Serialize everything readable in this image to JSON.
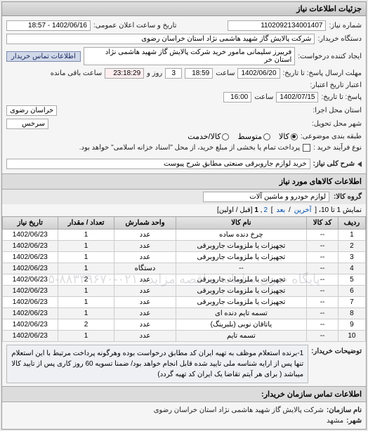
{
  "panel1": {
    "title": "جزئیات اطلاعات نیاز",
    "request_no_label": "شماره نیاز:",
    "request_no": "1102092134001407",
    "announce_label": "تاریخ و ساعت اعلان عمومی:",
    "announce_value": "1402/06/16 - 18:57",
    "buyer_label": "دستگاه خریدار:",
    "buyer_value": "شرکت پالایش گاز شهید هاشمی نژاد   استان خراسان رضوی",
    "creator_label": "ایجاد کننده درخواست:",
    "creator_value": "فریبرز  سلیمانی مامور خرید شرکت پالایش گاز شهید هاشمی نژاد   استان خر",
    "contact_btn": "اطلاعات تماس خریدار",
    "deadline_label": "مهلت ارسال پاسخ: تا تاریخ:",
    "deadline_date": "1402/06/20",
    "time_label": "ساعت",
    "deadline_time": "18:59",
    "remain_days": "3",
    "days_and": "روز و",
    "remain_time": "23:18:29",
    "remain_suffix": "ساعت باقی مانده",
    "validity_label": "اعتبار تاریخ اعتبار:",
    "validity_to_label": "پاسخ: تا تاریخ:",
    "validity_date": "1402/07/15",
    "validity_time": "16:00",
    "exec_province_label": "استان محل اجرا:",
    "exec_province": "خراسان رضوی",
    "delivery_city_label": "شهر محل تحویل:",
    "delivery_city": "سرخس",
    "budget_label": "طبقه بندی موضوعی:",
    "budget_opts": {
      "a": "کالا",
      "b": "متوسط",
      "c": "کالا/خدمت"
    },
    "buy_type_label": "نوع فرآیند خرید :",
    "buy_type_note": "پرداخت تمام یا بخشی از مبلغ خرید، از محل \"اسناد خزانه اسلامی\" خواهد بود.",
    "subject_label": "شرح کلی نیاز:",
    "subject_value": "خرید لوازم جاروبرقی صنعتی مطابق شرح پیوست"
  },
  "panel2": {
    "title": "اطلاعات کالاهای مورد نیاز",
    "group_label": "گروه کالا:",
    "group_value": "لوازم خودرو و ماشین آلات",
    "pager_text": "نمایش 1 تا 10، [ ",
    "pager_last": "آخرین",
    "pager_next": "بعد",
    "pager_sep": " / ",
    "pager_close": " ]",
    "pager_p2": "2",
    "pager_p1": "1",
    "pager_first": "[قبل / اولین]",
    "columns": [
      "ردیف",
      "کد کالا",
      "نام کالا",
      "واحد شمارش",
      "تعداد / مقدار",
      "تاریخ نیاز"
    ],
    "rows": [
      [
        "1",
        "--",
        "چرخ دنده ساده",
        "عدد",
        "1",
        "1402/06/23"
      ],
      [
        "2",
        "--",
        "تجهیزات یا ملزومات جاروبرقی",
        "عدد",
        "1",
        "1402/06/23"
      ],
      [
        "3",
        "--",
        "تجهیزات یا ملزومات جاروبرقی",
        "عدد",
        "1",
        "1402/06/23"
      ],
      [
        "4",
        "--",
        "--",
        "دستگاه",
        "1",
        "1402/06/23"
      ],
      [
        "5",
        "--",
        "تجهیزات یا ملزومات جاروبرقی",
        "عدد",
        "2",
        "1402/06/23"
      ],
      [
        "6",
        "--",
        "تجهیزات یا ملزومات جاروبرقی",
        "عدد",
        "1",
        "1402/06/23"
      ],
      [
        "7",
        "--",
        "تجهیزات یا ملزومات جاروبرقی",
        "عدد",
        "1",
        "1402/06/23"
      ],
      [
        "8",
        "--",
        "تسمه تایم دنده ای",
        "عدد",
        "1",
        "1402/06/23"
      ],
      [
        "9",
        "--",
        "یاتاقان نوبی (بلبرینگ)",
        "عدد",
        "2",
        "1402/06/23"
      ],
      [
        "10",
        "--",
        "تسمه تایم",
        "عدد",
        "1",
        "1402/06/23"
      ]
    ],
    "watermark": "پایگاه خبری سامانه مناقصه مزایده   ۰۲۱-۸۸۳۴۹۶۷۰-۵",
    "desc_label": "توضیحات خریدار:",
    "desc_text": "1-برنده استعلام موظف به تهیه ایران کد مطابق درخواست بوده وهرگونه پرداخت مرتبط با این استعلام تنها پس از ارایه شناسه ملی تایید شده قابل انجام خواهد بود/ ضمنا تسویه 60 روز کاری پس از تایید کالا میباشد ( برای هر آیتم تقاضا یک ایران کد تهیه گردد)"
  },
  "footer": {
    "title": "اطلاعات تماس سازمان خریدار:",
    "org_label": "نام سازمان:",
    "org_value": "شرکت پالایش گاز شهید هاشمی نژاد استان خراسان رضوی",
    "city_label": "شهر:",
    "city_value": "مشهد"
  }
}
